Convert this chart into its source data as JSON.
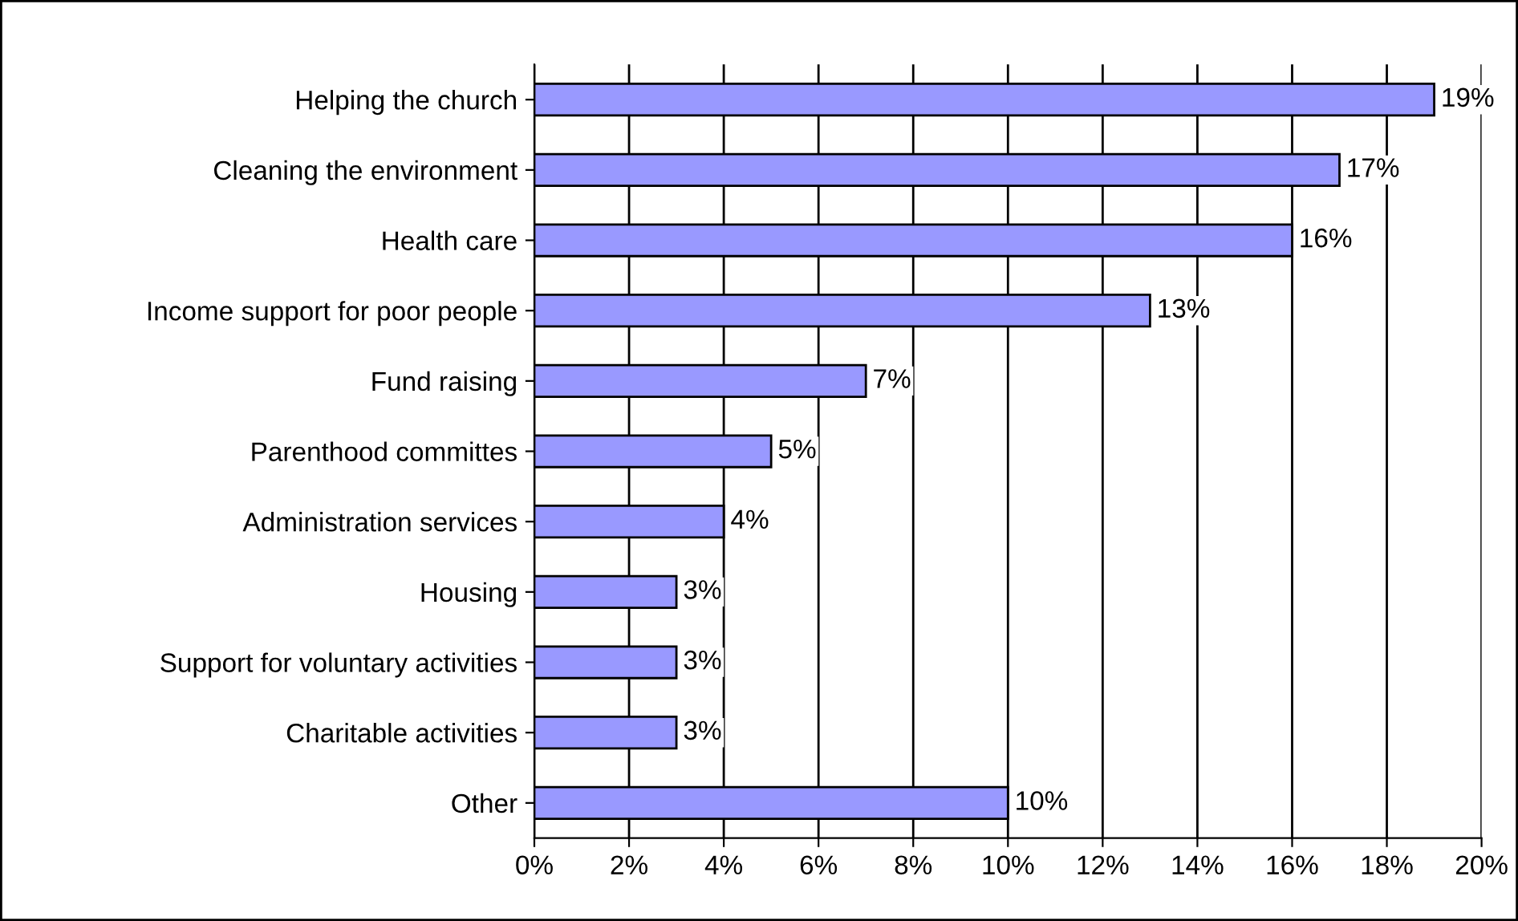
{
  "chart_data": {
    "type": "bar",
    "orientation": "horizontal",
    "categories": [
      "Helping the church",
      "Cleaning the environment",
      "Health care",
      "Income support for poor people",
      "Fund raising",
      "Parenthood committes",
      "Administration services",
      "Housing",
      "Support for voluntary activities",
      "Charitable activities",
      "Other"
    ],
    "values": [
      19,
      17,
      16,
      13,
      7,
      5,
      4,
      3,
      3,
      3,
      10
    ],
    "value_labels": [
      "19%",
      "17%",
      "16%",
      "13%",
      "7%",
      "5%",
      "4%",
      "3%",
      "3%",
      "3%",
      "10%"
    ],
    "color": "#9999ff",
    "xlim": [
      0,
      20
    ],
    "xticks": [
      {
        "value": 0,
        "label": "0%"
      },
      {
        "value": 2,
        "label": "2%"
      },
      {
        "value": 4,
        "label": "4%"
      },
      {
        "value": 6,
        "label": "6%"
      },
      {
        "value": 8,
        "label": "8%"
      },
      {
        "value": 10,
        "label": "10%"
      },
      {
        "value": 12,
        "label": "12%"
      },
      {
        "value": 14,
        "label": "14%"
      },
      {
        "value": 16,
        "label": "16%"
      },
      {
        "value": 18,
        "label": "18%"
      },
      {
        "value": 20,
        "label": "20%"
      }
    ],
    "grid": "x",
    "legend": false
  }
}
